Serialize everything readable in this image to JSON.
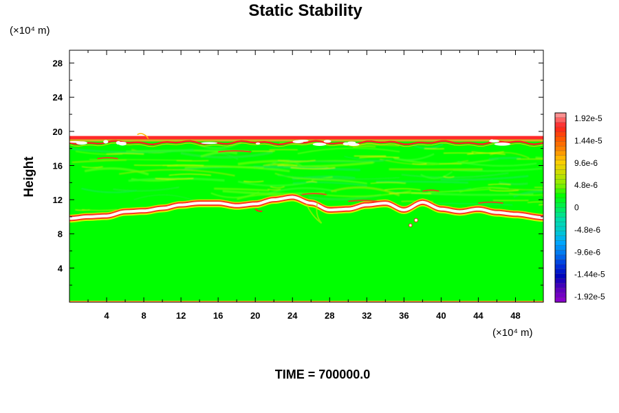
{
  "chart_data": {
    "type": "heatmap",
    "title": "Static Stability",
    "ylabel": "Height",
    "x_unit": "(×10⁴ m)",
    "y_unit": "(×10⁴ m)",
    "footer": "TIME = 700000.0",
    "xlim": [
      0,
      51
    ],
    "ylim": [
      0,
      29.5
    ],
    "x_ticks": [
      4,
      8,
      12,
      16,
      20,
      24,
      28,
      32,
      36,
      40,
      44,
      48
    ],
    "y_ticks": [
      4,
      8,
      12,
      16,
      20,
      24,
      28
    ],
    "colorbar": {
      "labels": [
        "1.92e-5",
        "1.44e-5",
        "9.6e-6",
        "4.8e-6",
        "0",
        "-4.8e-6",
        "-9.6e-6",
        "-1.44e-5",
        "-1.92e-5"
      ],
      "range": [
        -1.92e-05,
        1.92e-05
      ],
      "colors": [
        "#f08080",
        "#ff2020",
        "#ff8800",
        "#ccdd00",
        "#00ff00",
        "#00ddaa",
        "#00aaff",
        "#0022dd",
        "#8800cc"
      ]
    },
    "field": {
      "background_value": 0,
      "domain_top_height": 19.3,
      "upper_layer_height": 19.0,
      "lower_layer_heights": {
        "x": [
          0,
          2,
          4,
          6,
          8,
          10,
          12,
          14,
          16,
          18,
          20,
          22,
          24,
          26,
          28,
          30,
          32,
          34,
          36,
          38,
          40,
          42,
          44,
          46,
          48,
          51
        ],
        "y": [
          9.8,
          10.0,
          10.1,
          10.6,
          10.7,
          11.0,
          11.4,
          11.6,
          11.6,
          11.3,
          11.5,
          12.0,
          12.3,
          11.6,
          10.8,
          10.9,
          11.4,
          11.6,
          10.8,
          11.7,
          10.9,
          10.6,
          10.9,
          10.5,
          10.3,
          9.9
        ]
      }
    }
  }
}
